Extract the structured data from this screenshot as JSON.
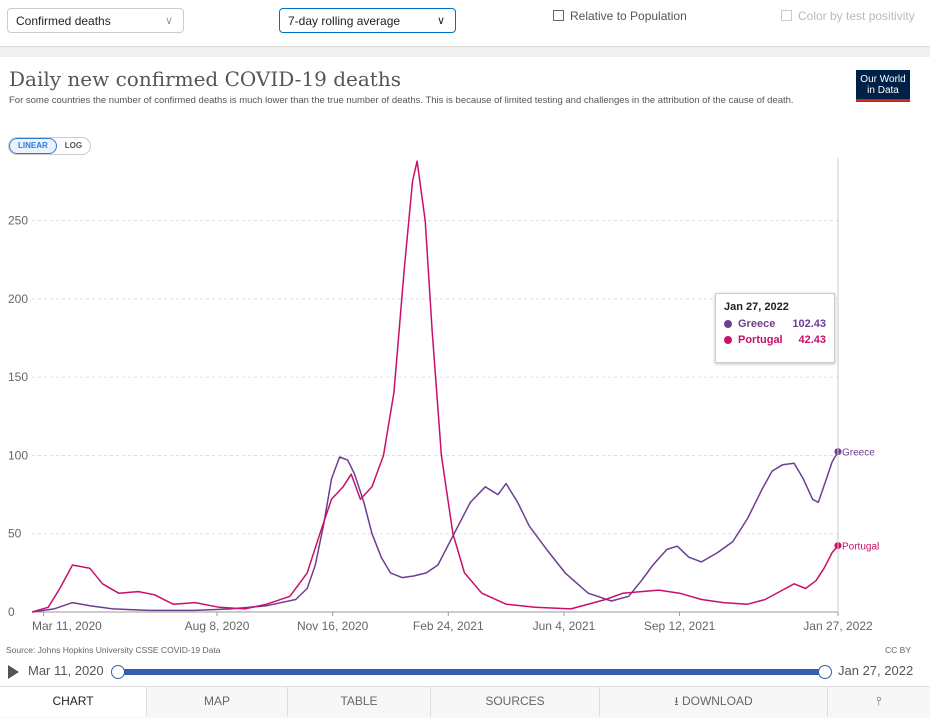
{
  "controls": {
    "metric_select": "Confirmed deaths",
    "interval_select": "7-day rolling average",
    "relative_label": "Relative to Population",
    "color_label": "Color by test positivity"
  },
  "header": {
    "title": "Daily new confirmed COVID-19 deaths",
    "subtitle": "For some countries the number of confirmed deaths is much lower than the true number of deaths. This is because of limited testing and challenges in the attribution of the cause of death.",
    "logo_line1": "Our World",
    "logo_line2": "in Data"
  },
  "scale_toggle": {
    "linear": "LINEAR",
    "log": "LOG",
    "selected": "LINEAR"
  },
  "tooltip": {
    "date": "Jan 27, 2022",
    "rows": [
      {
        "name": "Greece",
        "value": "102.43"
      },
      {
        "name": "Portugal",
        "value": "42.43"
      }
    ]
  },
  "footer": {
    "source": "Source: Johns Hopkins University CSSE COVID-19 Data",
    "license": "CC BY"
  },
  "timeline": {
    "start": "Mar 11, 2020",
    "end": "Jan 27, 2022"
  },
  "tabs": [
    "CHART",
    "MAP",
    "TABLE",
    "SOURCES",
    "DOWNLOAD"
  ],
  "colors": {
    "greece": "#6d3e91",
    "portugal": "#c90f6a",
    "accent": "#2c7ad6"
  },
  "chart_data": {
    "type": "line",
    "title": "Daily new confirmed COVID-19 deaths",
    "ylim": [
      0,
      290
    ],
    "y_ticks": [
      0,
      50,
      100,
      150,
      200,
      250
    ],
    "x_tick_labels": [
      "Mar 11, 2020",
      "Aug 8, 2020",
      "Nov 16, 2020",
      "Feb 24, 2021",
      "Jun 4, 2021",
      "Sep 12, 2021",
      "Jan 27, 2022"
    ],
    "x_tick_dates": [
      "2020-03-11",
      "2020-08-08",
      "2020-11-16",
      "2021-02-24",
      "2021-06-04",
      "2021-09-12",
      "2022-01-27"
    ],
    "x_range": [
      "2020-03-01",
      "2022-01-27"
    ],
    "grid": "horizontal dashed",
    "series": [
      {
        "name": "Greece",
        "color": "#6d3e91",
        "points": [
          [
            "2020-03-01",
            0
          ],
          [
            "2020-03-20",
            2
          ],
          [
            "2020-04-05",
            6
          ],
          [
            "2020-04-20",
            4
          ],
          [
            "2020-05-10",
            2
          ],
          [
            "2020-06-10",
            1
          ],
          [
            "2020-07-20",
            1
          ],
          [
            "2020-08-20",
            2
          ],
          [
            "2020-09-20",
            4
          ],
          [
            "2020-10-15",
            8
          ],
          [
            "2020-10-25",
            15
          ],
          [
            "2020-11-01",
            30
          ],
          [
            "2020-11-08",
            55
          ],
          [
            "2020-11-15",
            85
          ],
          [
            "2020-11-22",
            99
          ],
          [
            "2020-11-29",
            97
          ],
          [
            "2020-12-05",
            88
          ],
          [
            "2020-12-13",
            70
          ],
          [
            "2020-12-20",
            50
          ],
          [
            "2020-12-28",
            35
          ],
          [
            "2021-01-05",
            25
          ],
          [
            "2021-01-15",
            22
          ],
          [
            "2021-01-25",
            23
          ],
          [
            "2021-02-05",
            25
          ],
          [
            "2021-02-15",
            30
          ],
          [
            "2021-03-01",
            50
          ],
          [
            "2021-03-15",
            70
          ],
          [
            "2021-03-28",
            80
          ],
          [
            "2021-04-08",
            75
          ],
          [
            "2021-04-15",
            82
          ],
          [
            "2021-04-25",
            70
          ],
          [
            "2021-05-05",
            55
          ],
          [
            "2021-05-20",
            40
          ],
          [
            "2021-06-05",
            25
          ],
          [
            "2021-06-25",
            12
          ],
          [
            "2021-07-15",
            7
          ],
          [
            "2021-07-30",
            10
          ],
          [
            "2021-08-10",
            20
          ],
          [
            "2021-08-20",
            30
          ],
          [
            "2021-09-01",
            40
          ],
          [
            "2021-09-10",
            42
          ],
          [
            "2021-09-20",
            35
          ],
          [
            "2021-10-01",
            32
          ],
          [
            "2021-10-15",
            38
          ],
          [
            "2021-10-28",
            45
          ],
          [
            "2021-11-10",
            60
          ],
          [
            "2021-11-22",
            78
          ],
          [
            "2021-12-01",
            90
          ],
          [
            "2021-12-10",
            94
          ],
          [
            "2021-12-20",
            95
          ],
          [
            "2021-12-28",
            85
          ],
          [
            "2022-01-05",
            72
          ],
          [
            "2022-01-10",
            70
          ],
          [
            "2022-01-17",
            85
          ],
          [
            "2022-01-22",
            96
          ],
          [
            "2022-01-27",
            102.43
          ]
        ]
      },
      {
        "name": "Portugal",
        "color": "#c90f6a",
        "points": [
          [
            "2020-03-01",
            0
          ],
          [
            "2020-03-15",
            3
          ],
          [
            "2020-03-25",
            15
          ],
          [
            "2020-04-05",
            30
          ],
          [
            "2020-04-20",
            28
          ],
          [
            "2020-05-01",
            18
          ],
          [
            "2020-05-15",
            12
          ],
          [
            "2020-06-01",
            13
          ],
          [
            "2020-06-15",
            11
          ],
          [
            "2020-07-01",
            5
          ],
          [
            "2020-07-20",
            6
          ],
          [
            "2020-08-10",
            3
          ],
          [
            "2020-09-01",
            2
          ],
          [
            "2020-09-20",
            5
          ],
          [
            "2020-10-10",
            10
          ],
          [
            "2020-10-25",
            25
          ],
          [
            "2020-11-05",
            50
          ],
          [
            "2020-11-15",
            72
          ],
          [
            "2020-11-25",
            80
          ],
          [
            "2020-12-02",
            88
          ],
          [
            "2020-12-10",
            72
          ],
          [
            "2020-12-20",
            80
          ],
          [
            "2020-12-30",
            100
          ],
          [
            "2021-01-08",
            140
          ],
          [
            "2021-01-17",
            220
          ],
          [
            "2021-01-24",
            275
          ],
          [
            "2021-01-28",
            288
          ],
          [
            "2021-02-04",
            250
          ],
          [
            "2021-02-10",
            180
          ],
          [
            "2021-02-18",
            100
          ],
          [
            "2021-02-28",
            50
          ],
          [
            "2021-03-10",
            25
          ],
          [
            "2021-03-25",
            12
          ],
          [
            "2021-04-15",
            5
          ],
          [
            "2021-05-10",
            3
          ],
          [
            "2021-06-10",
            2
          ],
          [
            "2021-07-10",
            8
          ],
          [
            "2021-07-25",
            12
          ],
          [
            "2021-08-10",
            13
          ],
          [
            "2021-08-25",
            14
          ],
          [
            "2021-09-12",
            12
          ],
          [
            "2021-10-01",
            8
          ],
          [
            "2021-10-20",
            6
          ],
          [
            "2021-11-10",
            5
          ],
          [
            "2021-11-25",
            8
          ],
          [
            "2021-12-10",
            14
          ],
          [
            "2021-12-20",
            18
          ],
          [
            "2021-12-30",
            15
          ],
          [
            "2022-01-08",
            20
          ],
          [
            "2022-01-15",
            28
          ],
          [
            "2022-01-22",
            38
          ],
          [
            "2022-01-27",
            42.43
          ]
        ]
      }
    ]
  }
}
